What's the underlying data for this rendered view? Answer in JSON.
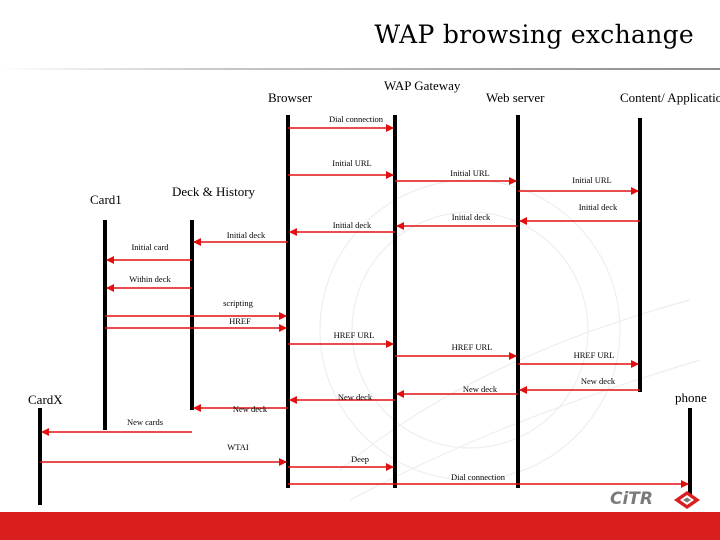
{
  "slide": {
    "title": "WAP browsing exchange"
  },
  "participants": [
    {
      "id": "card1",
      "label": "Card1"
    },
    {
      "id": "deck-history",
      "label": "Deck & History"
    },
    {
      "id": "browser",
      "label": "Browser"
    },
    {
      "id": "wap-gateway",
      "label": "WAP Gateway"
    },
    {
      "id": "web-server",
      "label": "Web server"
    },
    {
      "id": "content-app",
      "label": "Content/ Application"
    },
    {
      "id": "cardx",
      "label": "CardX"
    },
    {
      "id": "phone",
      "label": "phone"
    }
  ],
  "messages": [
    {
      "label": "Dial connection"
    },
    {
      "label": "Initial URL"
    },
    {
      "label": "Initial URL"
    },
    {
      "label": "Initial URL"
    },
    {
      "label": "Initial deck"
    },
    {
      "label": "Initial deck"
    },
    {
      "label": "Initial deck"
    },
    {
      "label": "Initial deck"
    },
    {
      "label": "Initial card"
    },
    {
      "label": "Within deck"
    },
    {
      "label": "scripting"
    },
    {
      "label": "HREF"
    },
    {
      "label": "HREF URL"
    },
    {
      "label": "HREF URL"
    },
    {
      "label": "HREF URL"
    },
    {
      "label": "New deck"
    },
    {
      "label": "New deck"
    },
    {
      "label": "New deck"
    },
    {
      "label": "New deck"
    },
    {
      "label": "New cards"
    },
    {
      "label": "WTAI"
    },
    {
      "label": "Deep"
    },
    {
      "label": "Dial connection"
    }
  ],
  "logo": {
    "text": "CiTR"
  },
  "colors": {
    "arrow": "#e01010",
    "lifeline": "#000000",
    "bar": "#d81e1e"
  }
}
